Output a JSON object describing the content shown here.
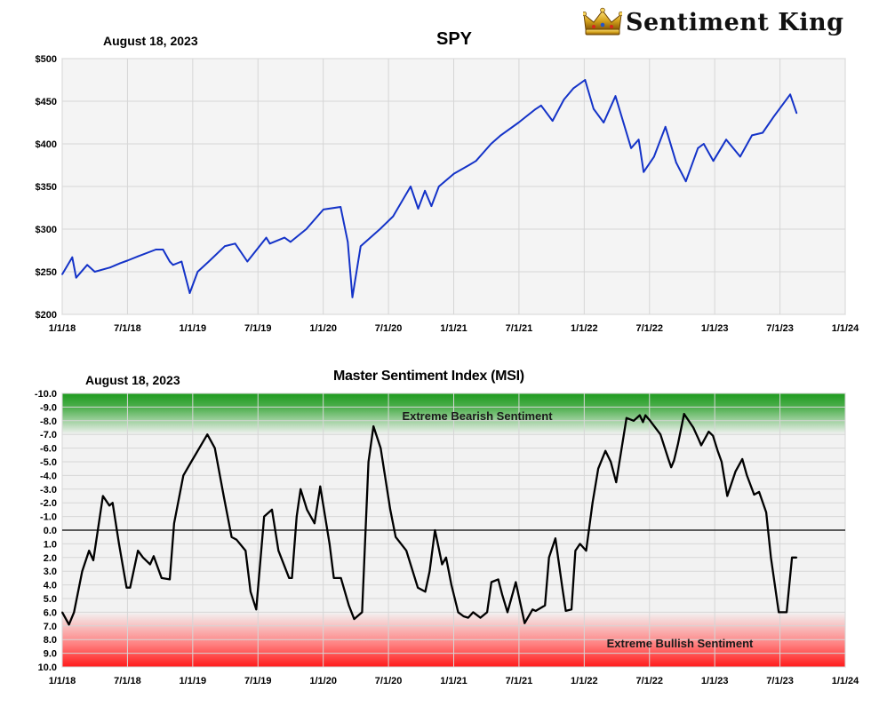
{
  "brand": {
    "name": "Sentiment King",
    "icon": "crown-icon"
  },
  "top": {
    "date": "August 18, 2023",
    "title": "SPY"
  },
  "bottom": {
    "date": "August 18, 2023",
    "title": "Master Sentiment Index (MSI)",
    "bearish_label": "Extreme Bearish Sentiment",
    "bullish_label": "Extreme Bullish Sentiment"
  },
  "chart_data": [
    {
      "type": "line",
      "title": "SPY",
      "x_ticks": [
        "1/1/18",
        "7/1/18",
        "1/1/19",
        "7/1/19",
        "1/1/20",
        "7/1/20",
        "1/1/21",
        "7/1/21",
        "1/1/22",
        "7/1/22",
        "1/1/23",
        "7/1/23",
        "1/1/24"
      ],
      "y_ticks": [
        "$200",
        "$250",
        "$300",
        "$350",
        "$400",
        "$450",
        "$500"
      ],
      "ylim": [
        200,
        500
      ],
      "xlim": [
        "2018-01-01",
        "2024-01-01"
      ],
      "grid": true,
      "color": "#1433c8",
      "series": [
        {
          "x": [
            "2018-01-01",
            "2018-01-29",
            "2018-02-09",
            "2018-03-12",
            "2018-04-02",
            "2018-05-15",
            "2018-06-12",
            "2018-07-02",
            "2018-08-01",
            "2018-09-20",
            "2018-10-10",
            "2018-10-29",
            "2018-11-07",
            "2018-12-01",
            "2018-12-24",
            "2019-01-15",
            "2019-02-15",
            "2019-04-01",
            "2019-04-30",
            "2019-06-03",
            "2019-07-26",
            "2019-08-05",
            "2019-09-15",
            "2019-10-02",
            "2019-11-15",
            "2020-01-02",
            "2020-02-19",
            "2020-03-10",
            "2020-03-23",
            "2020-04-15",
            "2020-06-08",
            "2020-07-15",
            "2020-09-02",
            "2020-09-23",
            "2020-10-12",
            "2020-10-30",
            "2020-11-20",
            "2021-01-01",
            "2021-02-12",
            "2021-03-04",
            "2021-04-15",
            "2021-05-12",
            "2021-07-01",
            "2021-08-15",
            "2021-09-02",
            "2021-10-04",
            "2021-11-05",
            "2021-12-01",
            "2022-01-03",
            "2022-01-27",
            "2022-02-24",
            "2022-03-29",
            "2022-05-12",
            "2022-06-02",
            "2022-06-16",
            "2022-07-15",
            "2022-08-16",
            "2022-09-15",
            "2022-10-12",
            "2022-11-15",
            "2022-12-01",
            "2022-12-28",
            "2023-02-02",
            "2023-03-13",
            "2023-04-15",
            "2023-05-15",
            "2023-06-15",
            "2023-07-31",
            "2023-08-18"
          ],
          "y": [
            247,
            267,
            243,
            258,
            250,
            255,
            260,
            263,
            268,
            276,
            276,
            262,
            258,
            262,
            225,
            250,
            262,
            280,
            283,
            262,
            290,
            283,
            290,
            285,
            300,
            323,
            326,
            285,
            220,
            280,
            300,
            315,
            350,
            324,
            345,
            327,
            350,
            365,
            375,
            380,
            400,
            410,
            425,
            440,
            445,
            427,
            452,
            465,
            475,
            441,
            425,
            456,
            395,
            405,
            367,
            385,
            420,
            378,
            356,
            395,
            400,
            380,
            405,
            385,
            410,
            413,
            432,
            458,
            436
          ]
        }
      ]
    },
    {
      "type": "line",
      "title": "Master Sentiment Index (MSI)",
      "x_ticks": [
        "1/1/18",
        "7/1/18",
        "1/1/19",
        "7/1/19",
        "1/1/20",
        "7/1/20",
        "1/1/21",
        "7/1/21",
        "1/1/22",
        "7/1/22",
        "1/1/23",
        "7/1/23",
        "1/1/24"
      ],
      "y_ticks": [
        "-10.0",
        "-9.0",
        "-8.0",
        "-7.0",
        "-6.0",
        "-5.0",
        "-4.0",
        "-3.0",
        "-2.0",
        "-1.0",
        "0.0",
        "1.0",
        "2.0",
        "3.0",
        "4.0",
        "5.0",
        "6.0",
        "7.0",
        "8.0",
        "9.0",
        "10.0"
      ],
      "ylim": [
        -10,
        10
      ],
      "y_inverted": true,
      "xlim": [
        "2018-01-01",
        "2024-01-01"
      ],
      "grid": true,
      "zero_line": true,
      "bands": [
        {
          "label": "Extreme Bearish Sentiment",
          "range": [
            -10,
            -7
          ],
          "color": "#1e9a1e"
        },
        {
          "label": "Extreme Bullish Sentiment",
          "range": [
            6,
            10
          ],
          "color": "#ff2020"
        }
      ],
      "color": "#000000",
      "series": [
        {
          "x": [
            "2018-01-01",
            "2018-01-20",
            "2018-02-03",
            "2018-02-26",
            "2018-03-17",
            "2018-03-29",
            "2018-04-25",
            "2018-05-13",
            "2018-05-22",
            "2018-06-09",
            "2018-06-30",
            "2018-07-10",
            "2018-08-01",
            "2018-08-15",
            "2018-09-04",
            "2018-09-14",
            "2018-10-06",
            "2018-10-29",
            "2018-11-10",
            "2018-12-06",
            "2018-12-28",
            "2019-02-11",
            "2019-03-04",
            "2019-03-29",
            "2019-04-20",
            "2019-05-04",
            "2019-05-29",
            "2019-06-12",
            "2019-06-28",
            "2019-07-20",
            "2019-08-11",
            "2019-08-29",
            "2019-09-28",
            "2019-10-06",
            "2019-10-19",
            "2019-10-30",
            "2019-11-17",
            "2019-12-08",
            "2019-12-24",
            "2020-01-19",
            "2020-01-31",
            "2020-02-20",
            "2020-03-13",
            "2020-03-28",
            "2020-04-19",
            "2020-05-07",
            "2020-05-21",
            "2020-06-10",
            "2020-07-07",
            "2020-07-22",
            "2020-08-21",
            "2020-09-22",
            "2020-10-13",
            "2020-10-25",
            "2020-11-09",
            "2020-11-29",
            "2020-12-10",
            "2020-12-25",
            "2021-01-13",
            "2021-01-28",
            "2021-02-10",
            "2021-02-24",
            "2021-03-16",
            "2021-04-04",
            "2021-04-16",
            "2021-05-05",
            "2021-05-16",
            "2021-05-31",
            "2021-06-16",
            "2021-06-23",
            "2021-07-18",
            "2021-08-09",
            "2021-08-18",
            "2021-09-13",
            "2021-09-24",
            "2021-10-12",
            "2021-11-01",
            "2021-11-10",
            "2021-11-26",
            "2021-12-07",
            "2021-12-20",
            "2022-01-06",
            "2022-01-24",
            "2022-02-09",
            "2022-03-01",
            "2022-03-16",
            "2022-03-31",
            "2022-04-29",
            "2022-05-19",
            "2022-06-05",
            "2022-06-14",
            "2022-06-21",
            "2022-07-04",
            "2022-08-02",
            "2022-08-24",
            "2022-09-01",
            "2022-09-09",
            "2022-09-20",
            "2022-10-07",
            "2022-11-02",
            "2022-11-16",
            "2022-11-24",
            "2022-12-15",
            "2022-12-27",
            "2023-01-09",
            "2023-01-20",
            "2023-02-05",
            "2023-02-28",
            "2023-03-19",
            "2023-04-01",
            "2023-04-21",
            "2023-05-05",
            "2023-05-25",
            "2023-06-07",
            "2023-06-29",
            "2023-07-21",
            "2023-08-05",
            "2023-08-18"
          ],
          "y": [
            6.0,
            6.9,
            6.0,
            3.0,
            1.5,
            2.2,
            -2.5,
            -1.8,
            -2.0,
            1.0,
            4.2,
            4.2,
            1.5,
            2.0,
            2.5,
            1.9,
            3.5,
            3.6,
            -0.5,
            -4.0,
            -5.0,
            -7.0,
            -6.0,
            -2.5,
            0.5,
            0.7,
            1.5,
            4.5,
            5.8,
            -1.0,
            -1.5,
            1.5,
            3.5,
            3.5,
            -1.0,
            -3.0,
            -1.5,
            -0.5,
            -3.2,
            1.0,
            3.5,
            3.5,
            5.5,
            6.5,
            6.0,
            -5.0,
            -7.6,
            -6.0,
            -1.5,
            0.5,
            1.5,
            4.2,
            4.5,
            3.0,
            0.0,
            2.5,
            2.0,
            4.0,
            6.0,
            6.3,
            6.4,
            6.0,
            6.4,
            6.0,
            3.8,
            3.6,
            4.7,
            6.0,
            4.5,
            3.8,
            6.8,
            5.8,
            5.9,
            5.5,
            2.0,
            0.6,
            4.3,
            5.9,
            5.8,
            1.5,
            1.0,
            1.5,
            -2.0,
            -4.5,
            -5.8,
            -5.0,
            -3.5,
            -8.2,
            -8.0,
            -8.4,
            -7.9,
            -8.4,
            -8.0,
            -7.0,
            -5.2,
            -4.6,
            -5.1,
            -6.3,
            -8.5,
            -7.5,
            -6.7,
            -6.2,
            -7.2,
            -6.9,
            -5.8,
            -5.0,
            -2.5,
            -4.3,
            -5.2,
            -4.0,
            -2.6,
            -2.8,
            -1.3,
            2.0,
            6.0,
            6.0,
            2.0,
            2.0
          ]
        }
      ]
    }
  ]
}
